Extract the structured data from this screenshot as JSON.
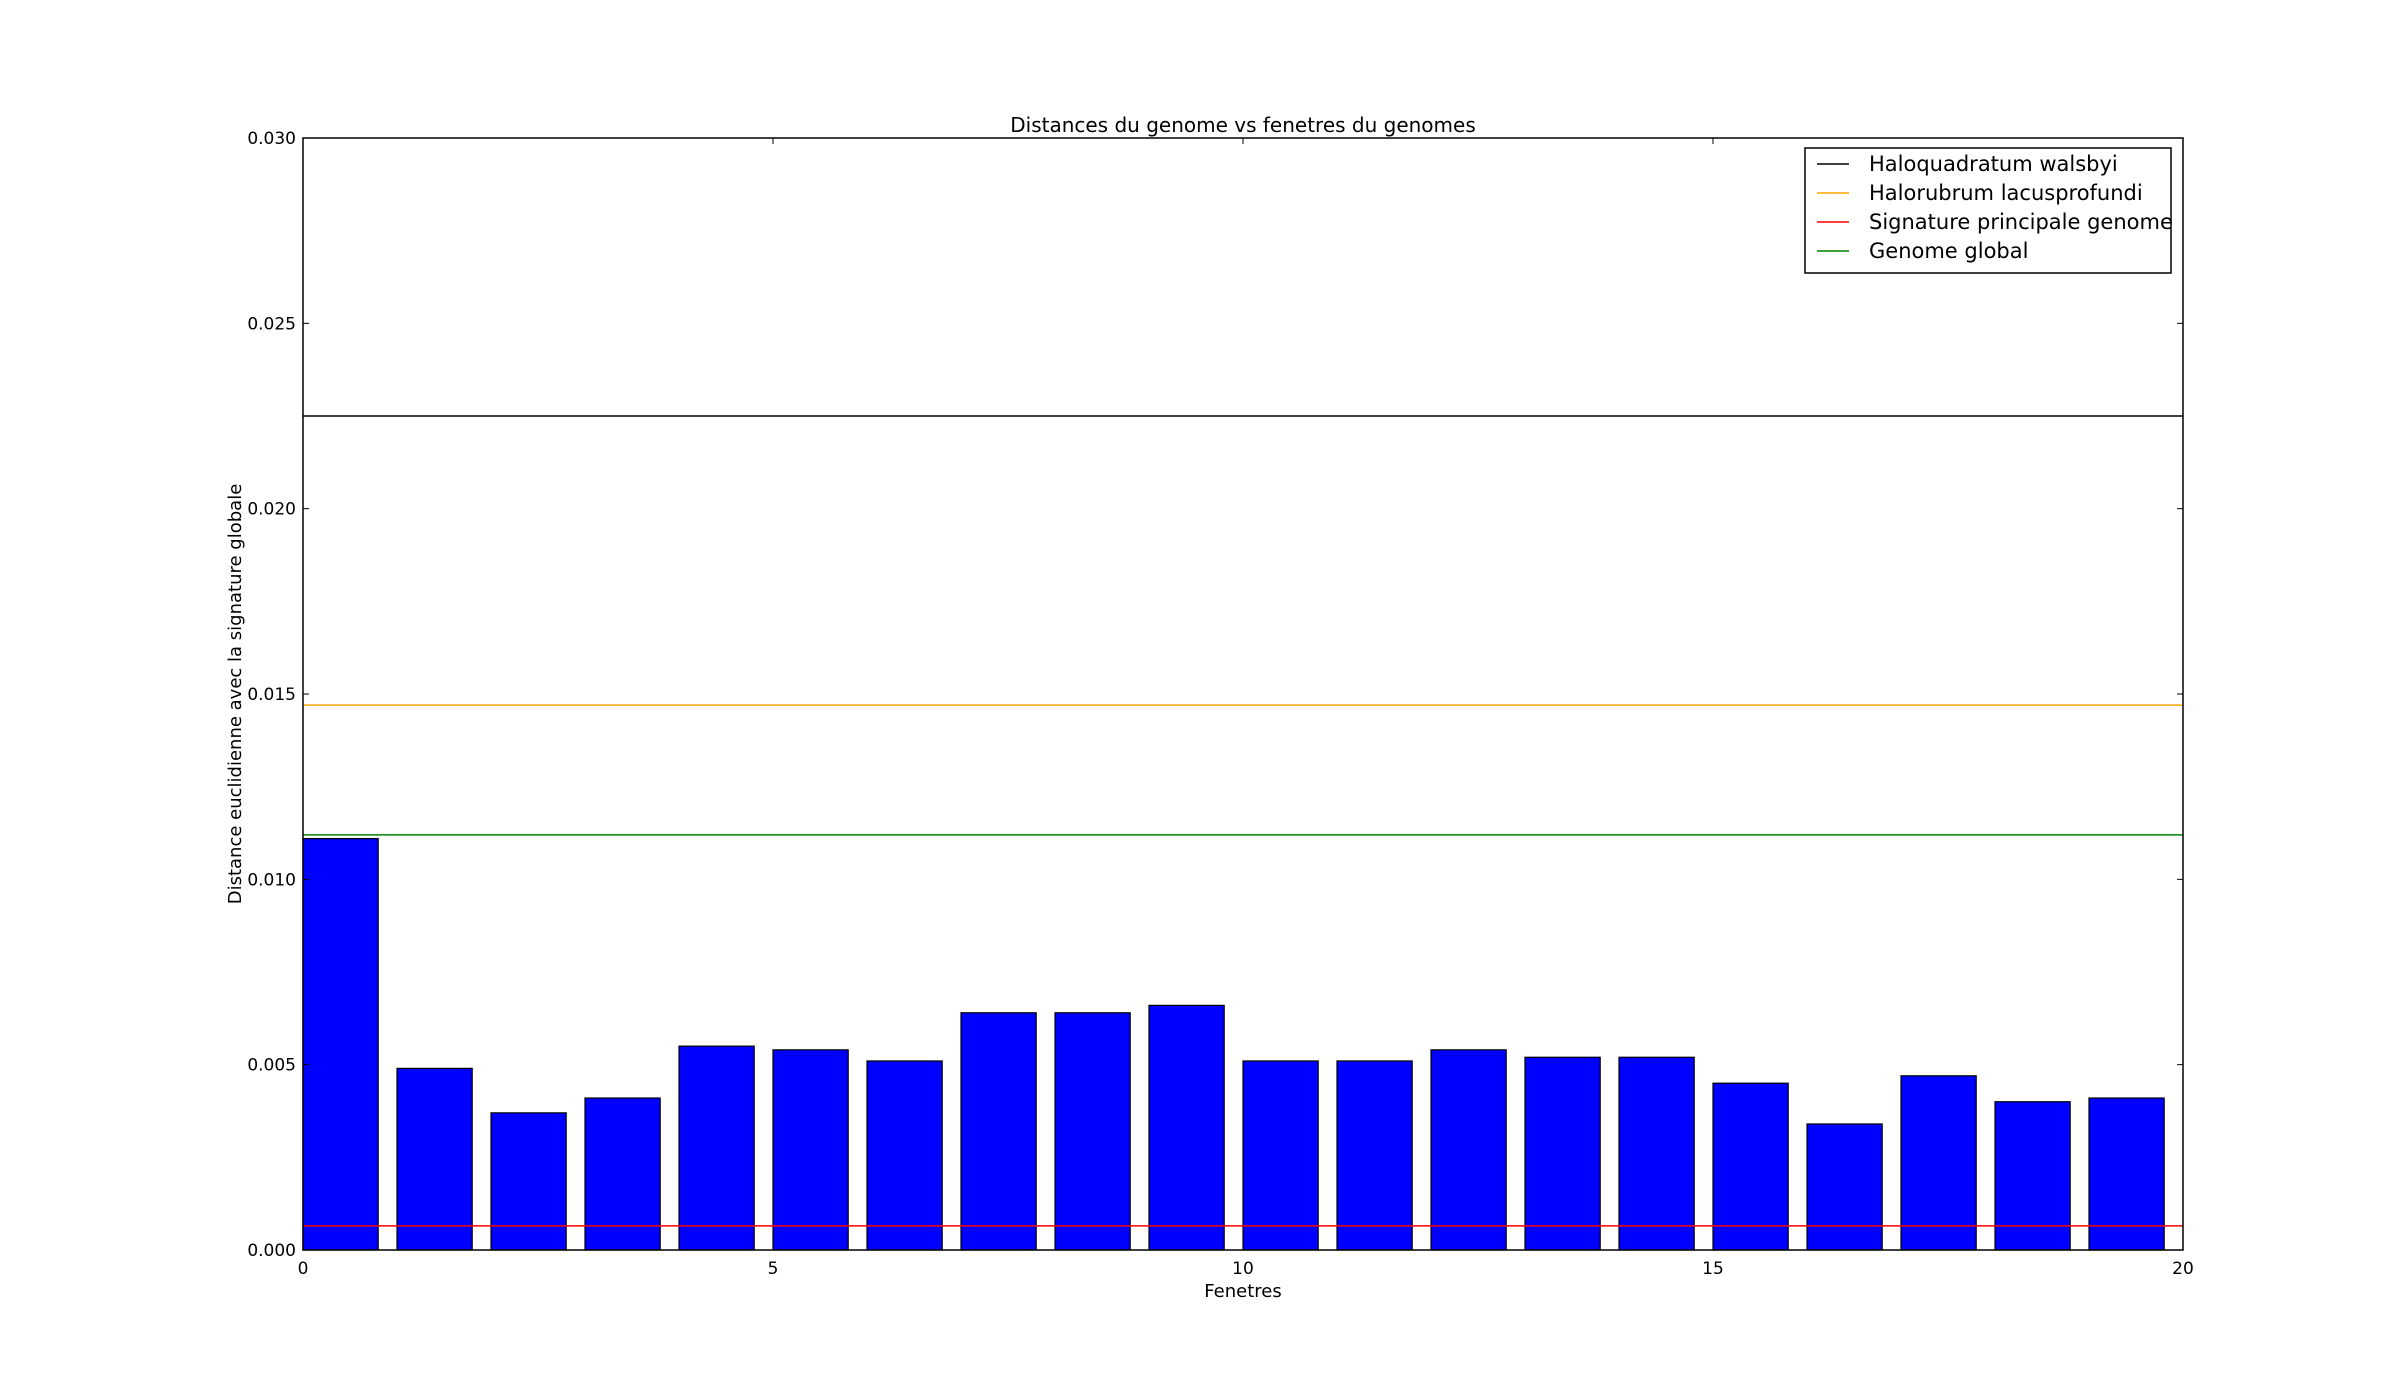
{
  "chart_data": {
    "type": "bar",
    "title": "Distances du genome vs fenetres du genomes",
    "xlabel": "Fenetres",
    "ylabel": "Distance euclidienne avec la signature globale",
    "xlim": [
      0,
      20
    ],
    "ylim": [
      0,
      0.03
    ],
    "xticks": [
      0,
      5,
      10,
      15,
      20
    ],
    "xtick_labels": [
      "0",
      "5",
      "10",
      "15",
      "20"
    ],
    "yticks": [
      0,
      0.005,
      0.01,
      0.015,
      0.02,
      0.025,
      0.03
    ],
    "ytick_labels": [
      "0.000",
      "0.005",
      "0.010",
      "0.015",
      "0.020",
      "0.025",
      "0.030"
    ],
    "grid": false,
    "legend_position": "top-right",
    "bar_width": 0.8,
    "bar_color": "#0000ff",
    "x": [
      0,
      1,
      2,
      3,
      4,
      5,
      6,
      7,
      8,
      9,
      10,
      11,
      12,
      13,
      14,
      15,
      16,
      17,
      18,
      19
    ],
    "values": [
      0.0111,
      0.0049,
      0.0037,
      0.0041,
      0.0055,
      0.0054,
      0.0051,
      0.0064,
      0.0064,
      0.0066,
      0.0051,
      0.0051,
      0.0054,
      0.0052,
      0.0052,
      0.0045,
      0.0034,
      0.0047,
      0.004,
      0.0041
    ],
    "reference_lines": [
      {
        "name": "Haloquadratum walsbyi",
        "value": 0.0225,
        "color": "#000000"
      },
      {
        "name": "Halorubrum lacusprofundi",
        "value": 0.0147,
        "color": "#ffa500"
      },
      {
        "name": "Signature principale genome",
        "value": 0.00065,
        "color": "#ff0000"
      },
      {
        "name": "Genome global",
        "value": 0.0112,
        "color": "#008000"
      }
    ]
  }
}
